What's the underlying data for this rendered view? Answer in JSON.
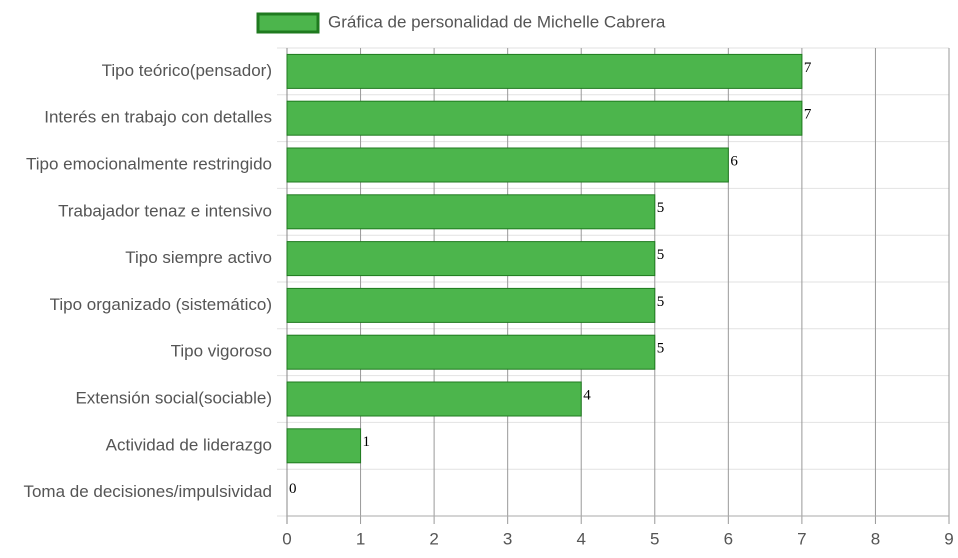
{
  "chart_data": {
    "type": "bar",
    "orientation": "horizontal",
    "categories": [
      "Tipo teórico(pensador)",
      "Interés en trabajo con detalles",
      "Tipo emocionalmente restringido",
      "Trabajador tenaz e intensivo",
      "Tipo siempre activo",
      "Tipo organizado (sistemático)",
      "Tipo vigoroso",
      "Extensión social(sociable)",
      "Actividad de liderazgo",
      "Toma de decisiones/impulsividad"
    ],
    "series": [
      {
        "name": "Gráfica de personalidad de Michelle Cabrera",
        "color": "#4cb54c",
        "border_color": "#1f7a1f",
        "values": [
          7,
          7,
          6,
          5,
          5,
          5,
          5,
          4,
          1,
          0
        ]
      }
    ],
    "xlim": [
      0,
      9
    ],
    "xticks": [
      0,
      1,
      2,
      3,
      4,
      5,
      6,
      7,
      8,
      9
    ],
    "grid": true,
    "legend": "top"
  }
}
